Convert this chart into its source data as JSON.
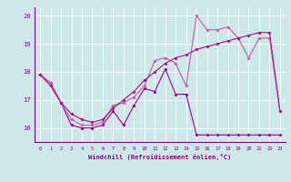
{
  "background_color": "#cce8e8",
  "grid_color": "#ffffff",
  "line_color1": "#990099",
  "line_color2": "#cc55aa",
  "line_color3": "#aa1177",
  "xlim": [
    -0.5,
    23.5
  ],
  "ylim": [
    15.5,
    20.3
  ],
  "xlabel": "Windchill (Refroidissement éolien,°C)",
  "yticks": [
    16,
    17,
    18,
    19,
    20
  ],
  "xticks": [
    0,
    1,
    2,
    3,
    4,
    5,
    6,
    7,
    8,
    9,
    10,
    11,
    12,
    13,
    14,
    15,
    16,
    17,
    18,
    19,
    20,
    21,
    22,
    23
  ],
  "s1x": [
    0,
    1,
    2,
    3,
    4,
    5,
    6,
    7,
    8,
    9,
    10,
    11,
    12,
    13,
    14,
    15,
    16,
    17,
    18,
    19,
    20,
    21,
    22,
    23
  ],
  "s1y": [
    17.9,
    17.6,
    16.9,
    16.1,
    16.0,
    16.0,
    16.1,
    16.6,
    16.1,
    16.8,
    17.4,
    17.3,
    18.1,
    17.2,
    17.2,
    15.75,
    15.75,
    15.75,
    15.75,
    15.75,
    15.75,
    15.75,
    15.75,
    15.75
  ],
  "s2x": [
    0,
    1,
    2,
    3,
    4,
    5,
    6,
    7,
    8,
    9,
    10,
    11,
    12,
    13,
    14,
    15,
    16,
    17,
    18,
    19,
    20,
    21,
    22,
    23
  ],
  "s2y": [
    17.9,
    17.6,
    16.9,
    16.3,
    16.1,
    16.1,
    16.2,
    16.8,
    16.9,
    17.1,
    17.5,
    18.4,
    18.5,
    18.3,
    17.5,
    20.0,
    19.5,
    19.5,
    19.6,
    19.2,
    18.5,
    19.2,
    19.2,
    16.6
  ],
  "s3x": [
    0,
    1,
    2,
    3,
    4,
    5,
    6,
    7,
    8,
    9,
    10,
    11,
    12,
    13,
    14,
    15,
    16,
    17,
    18,
    19,
    20,
    21,
    22,
    23
  ],
  "s3y": [
    17.9,
    17.5,
    16.9,
    16.5,
    16.3,
    16.2,
    16.3,
    16.7,
    17.0,
    17.3,
    17.7,
    18.0,
    18.3,
    18.5,
    18.6,
    18.8,
    18.9,
    19.0,
    19.1,
    19.2,
    19.3,
    19.4,
    19.4,
    16.6
  ]
}
